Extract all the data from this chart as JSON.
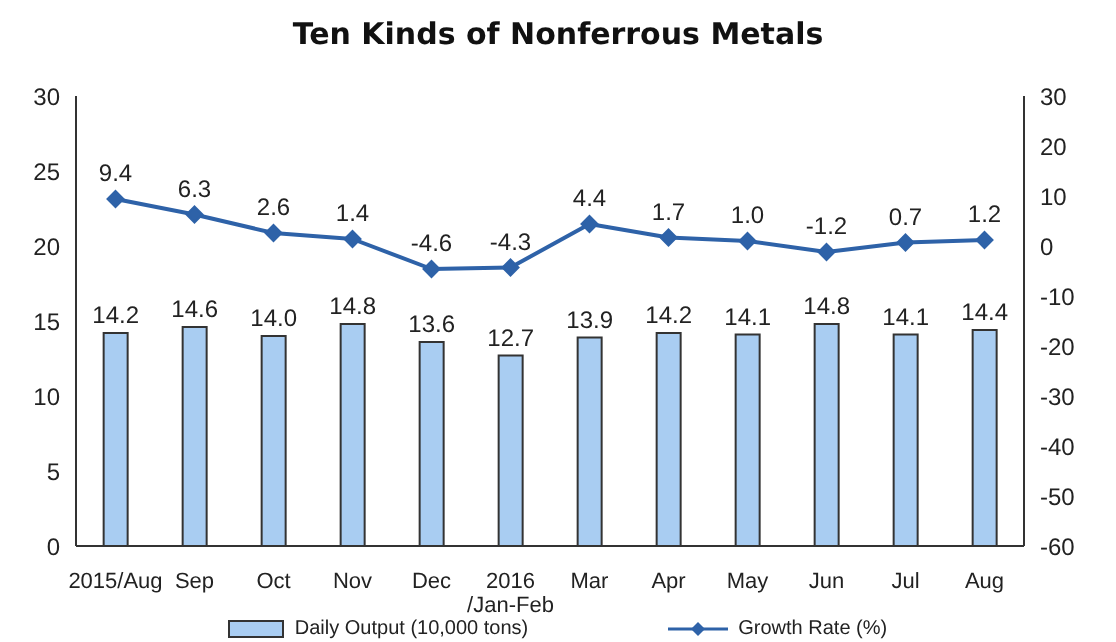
{
  "chart_data": {
    "type": "bar",
    "title": "Ten Kinds of Nonferrous Metals",
    "categories": [
      "2015/Aug",
      "Sep",
      "Oct",
      "Nov",
      "Dec",
      "2016\n/Jan-Feb",
      "Mar",
      "Apr",
      "May",
      "Jun",
      "Jul",
      "Aug"
    ],
    "series": [
      {
        "name": "Daily Output (10,000 tons)",
        "color": "#a9cdf2",
        "values": [
          14.2,
          14.6,
          14.0,
          14.8,
          13.6,
          12.7,
          13.9,
          14.2,
          14.1,
          14.8,
          14.1,
          14.4
        ],
        "value_labels": [
          "14.2",
          "14.6",
          "14.0",
          "14.8",
          "13.6",
          "12.7",
          "13.9",
          "14.2",
          "14.1",
          "14.8",
          "14.1",
          "14.4"
        ]
      },
      {
        "name": "Growth Rate (%)",
        "type": "line",
        "axis": "y2",
        "color": "#2e62a8",
        "marker": "diamond",
        "values": [
          9.4,
          6.3,
          2.6,
          1.4,
          -4.6,
          -4.3,
          4.4,
          1.7,
          1.0,
          -1.2,
          0.7,
          1.2
        ],
        "value_labels": [
          "9.4",
          "6.3",
          "2.6",
          "1.4",
          "-4.6",
          "-4.3",
          "4.4",
          "1.7",
          "1.0",
          "-1.2",
          "0.7",
          "1.2"
        ]
      }
    ],
    "ylim": [
      0,
      30
    ],
    "yticks": [
      0,
      5,
      10,
      15,
      20,
      25,
      30
    ],
    "y2lim": [
      -60,
      30
    ],
    "y2ticks": [
      -60,
      -50,
      -40,
      -30,
      -20,
      -10,
      0,
      10,
      20,
      30
    ],
    "legend": "bottom",
    "grid": false
  }
}
